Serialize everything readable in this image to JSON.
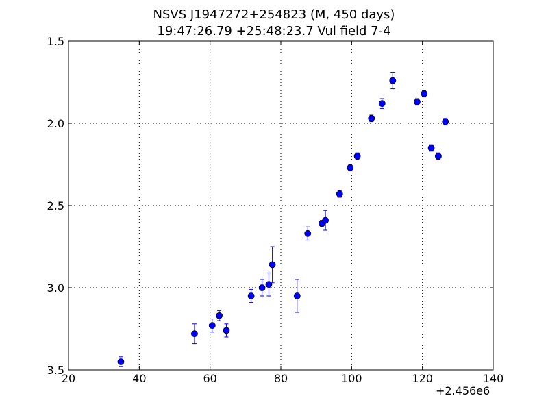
{
  "colors": {
    "marker": "#0000ff",
    "error_bar": "#0000ff",
    "marker_edge": "#000000",
    "axis": "#000000",
    "grid": "#000000",
    "background": "#ffffff"
  },
  "chart_data": {
    "type": "scatter",
    "title": "NSVS J1947272+254823 (M, 450 days)",
    "subtitle": "19:47:26.79 +25:48:23.7 Vul field 7-4",
    "xlabel": "",
    "ylabel": "",
    "x_offset_label": "+2.456e6",
    "xlim": [
      20,
      140
    ],
    "ylim": [
      3.5,
      1.5
    ],
    "y_inverted": true,
    "grid": true,
    "grid_style": "dotted",
    "xticks": [
      20,
      40,
      60,
      80,
      100,
      120,
      140
    ],
    "xtick_labels": [
      "20",
      "40",
      "60",
      "80",
      "100",
      "120",
      "140"
    ],
    "yticks": [
      1.5,
      2.0,
      2.5,
      3.0,
      3.5
    ],
    "ytick_labels": [
      "1.5",
      "2.0",
      "2.5",
      "3.0",
      "3.5"
    ],
    "series": [
      {
        "marker": "circle",
        "points": [
          {
            "x": 34.8,
            "y": 3.45,
            "err": 0.03
          },
          {
            "x": 55.6,
            "y": 3.28,
            "err": 0.06
          },
          {
            "x": 60.6,
            "y": 3.23,
            "err": 0.04
          },
          {
            "x": 62.6,
            "y": 3.17,
            "err": 0.03
          },
          {
            "x": 64.6,
            "y": 3.26,
            "err": 0.04
          },
          {
            "x": 71.6,
            "y": 3.05,
            "err": 0.04
          },
          {
            "x": 74.7,
            "y": 3.0,
            "err": 0.05
          },
          {
            "x": 76.6,
            "y": 2.98,
            "err": 0.07
          },
          {
            "x": 77.6,
            "y": 2.86,
            "err": 0.11
          },
          {
            "x": 84.6,
            "y": 3.05,
            "err": 0.1
          },
          {
            "x": 87.6,
            "y": 2.67,
            "err": 0.04
          },
          {
            "x": 91.6,
            "y": 2.61,
            "err": 0.02
          },
          {
            "x": 92.6,
            "y": 2.59,
            "err": 0.06
          },
          {
            "x": 96.6,
            "y": 2.43,
            "err": 0.02
          },
          {
            "x": 99.6,
            "y": 2.27,
            "err": 0.02
          },
          {
            "x": 101.6,
            "y": 2.2,
            "err": 0.02
          },
          {
            "x": 105.6,
            "y": 1.97,
            "err": 0.02
          },
          {
            "x": 108.6,
            "y": 1.88,
            "err": 0.03
          },
          {
            "x": 111.6,
            "y": 1.74,
            "err": 0.05
          },
          {
            "x": 118.5,
            "y": 1.87,
            "err": 0.02
          },
          {
            "x": 120.5,
            "y": 1.82,
            "err": 0.02
          },
          {
            "x": 122.5,
            "y": 2.15,
            "err": 0.02
          },
          {
            "x": 124.5,
            "y": 2.2,
            "err": 0.02
          },
          {
            "x": 126.5,
            "y": 1.99,
            "err": 0.02
          }
        ]
      }
    ]
  }
}
